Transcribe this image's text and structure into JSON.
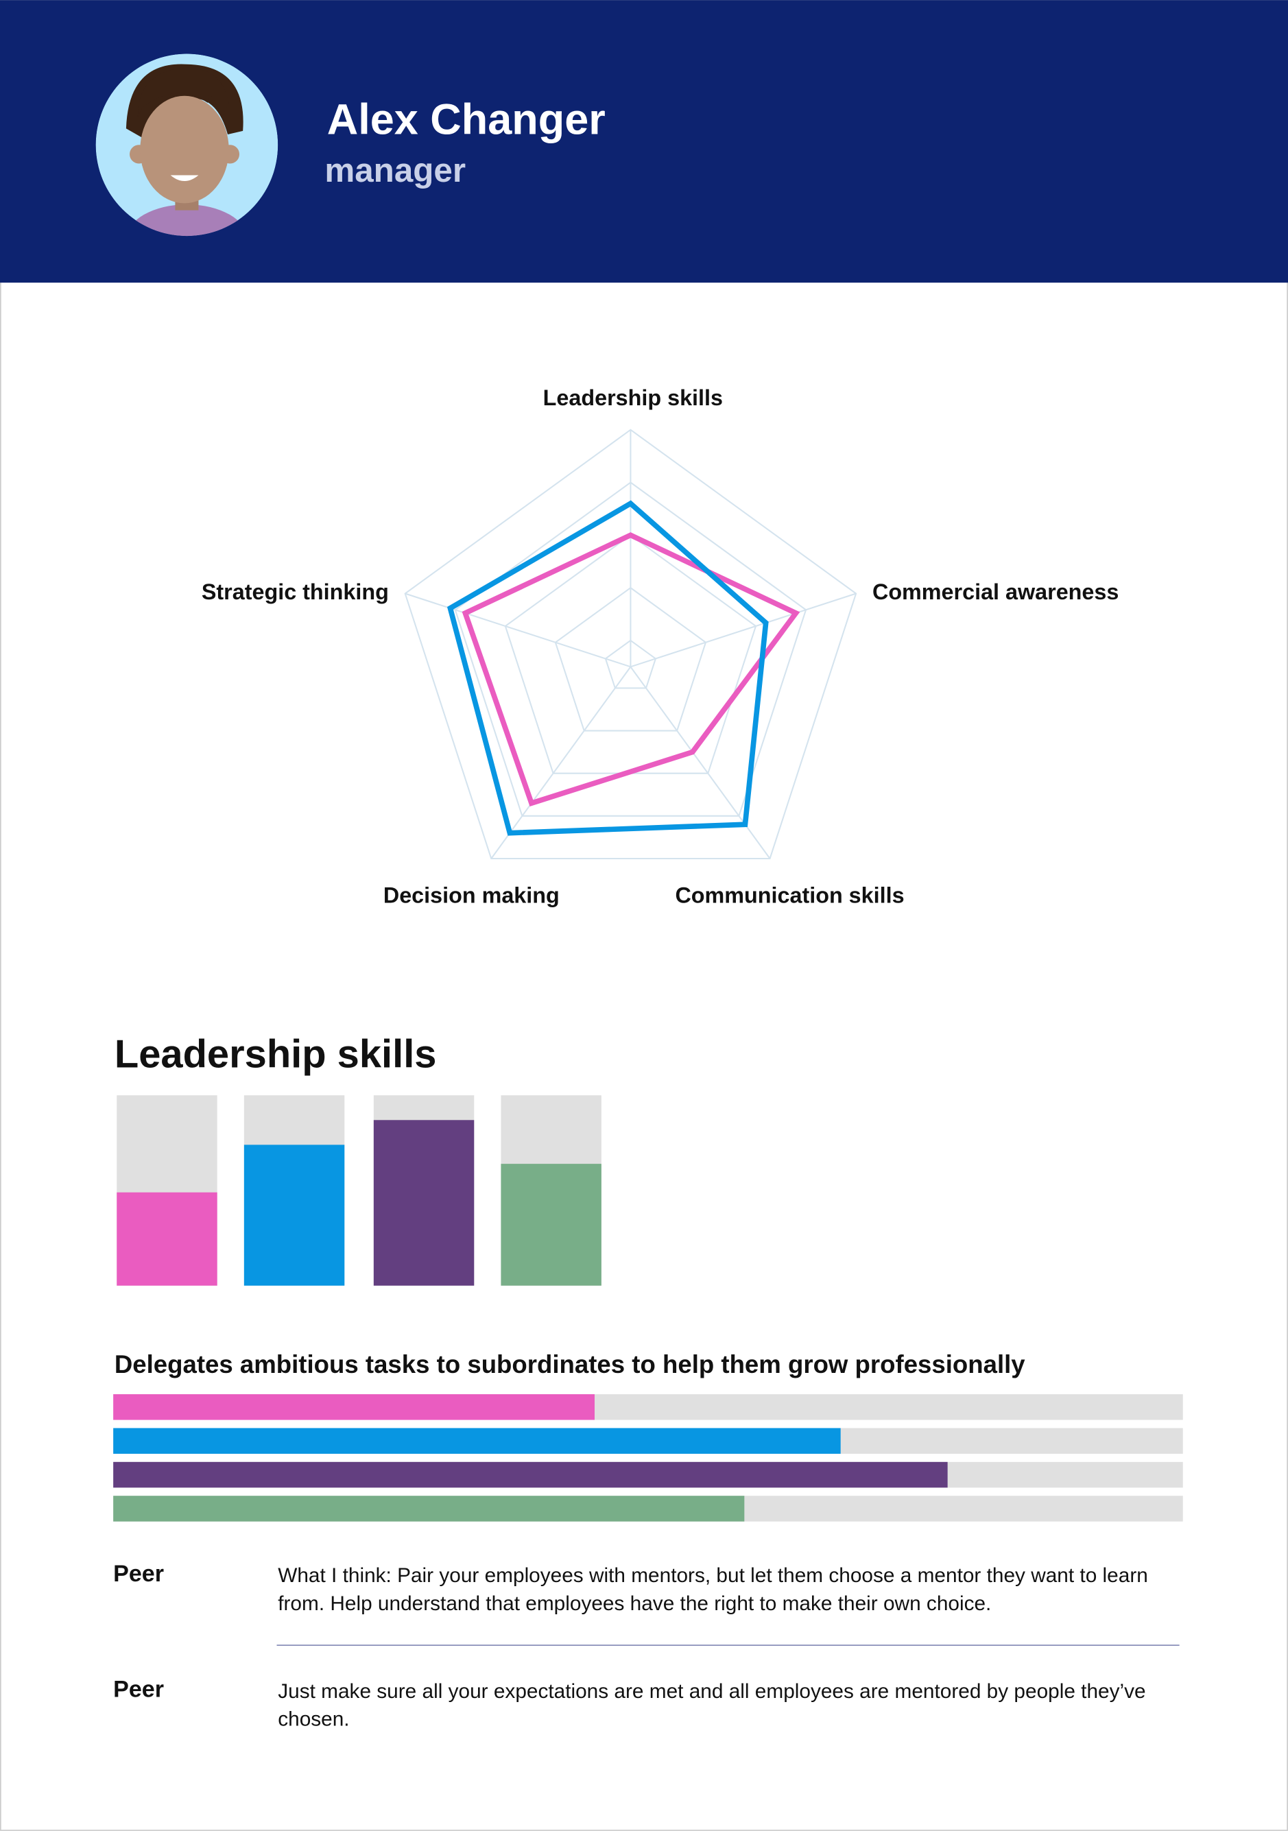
{
  "header": {
    "name": "Alex Changer",
    "role": "manager"
  },
  "chart_data": [
    {
      "type": "radar",
      "categories": [
        "Leadership skills",
        "Commercial awareness",
        "Communication skills",
        "Decision making",
        "Strategic thinking"
      ],
      "series": [
        {
          "color": "#ea5cc0",
          "values": [
            3.0,
            3.8,
            2.5,
            3.7,
            3.8
          ]
        },
        {
          "color": "#0896e2",
          "values": [
            3.6,
            3.2,
            4.2,
            4.4,
            4.1
          ]
        }
      ],
      "rlim": [
        0.5,
        5
      ],
      "rticks": [
        1,
        2,
        3,
        4,
        5
      ],
      "grid": true
    },
    {
      "type": "bar",
      "title": "Leadership skills",
      "values": [
        49,
        74,
        87,
        64
      ],
      "colors": [
        "#ea5cc0",
        "#0896e2",
        "#633f80",
        "#78ae88"
      ],
      "ylim": [
        0,
        100
      ]
    },
    {
      "type": "barh",
      "title": "Delegates ambitious tasks to subordinates to help them grow professionally",
      "values": [
        45,
        68,
        78,
        59
      ],
      "colors": [
        "#ea5cc0",
        "#0896e2",
        "#633f80",
        "#78ae88"
      ],
      "xlim": [
        0,
        100
      ]
    }
  ],
  "comments": [
    {
      "author": "Peer",
      "text": "What I think: Pair your employees with mentors, but let them choose a mentor they want to learn from. Help understand that employees have the right to make their own choice."
    },
    {
      "author": "Peer",
      "text": "Just make sure all your expectations are met and all employees are mentored by people they’ve chosen."
    }
  ]
}
